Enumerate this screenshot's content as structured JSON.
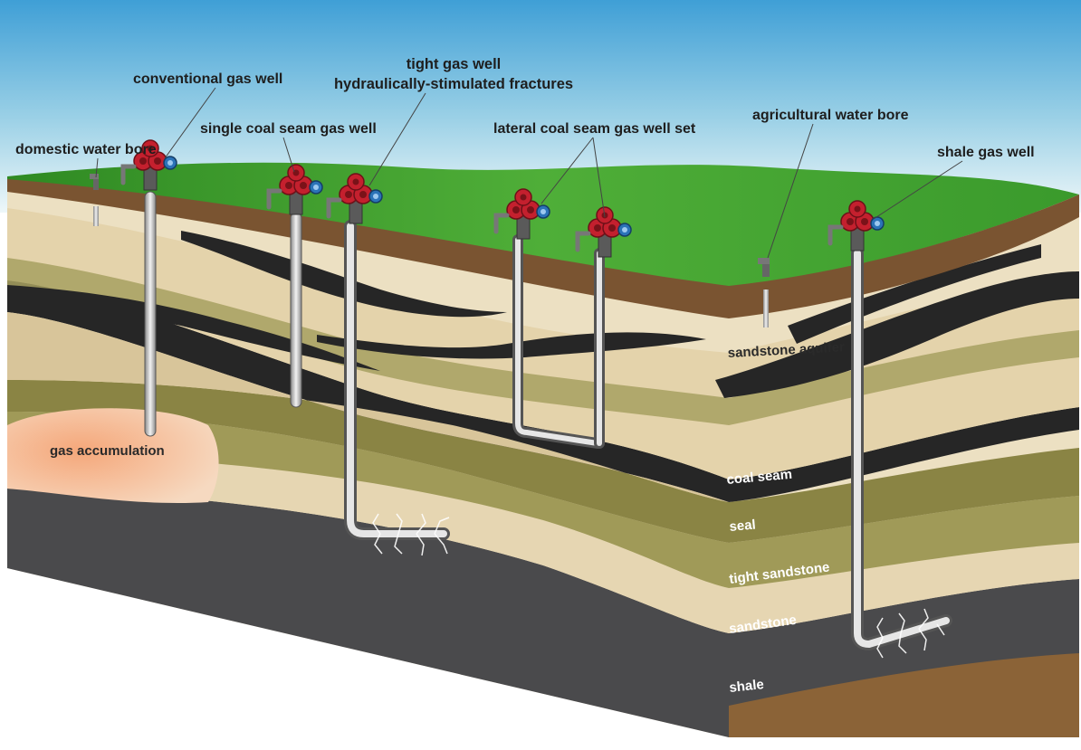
{
  "labels": {
    "domestic_water_bore": "domestic  water bore",
    "conventional_gas_well": "conventional gas well",
    "tight_gas_well": "tight gas well",
    "hydraulic_fractures": "hydraulically-stimulated fractures",
    "single_coal_seam_gas_well": "single coal seam gas well",
    "lateral_coal_seam_gas_well_set": "lateral coal seam gas well set",
    "agricultural_water_bore": "agricultural water bore",
    "shale_gas_well": "shale gas well",
    "sandstone_aquifer": "sandstone aquifer",
    "gas_accumulation": "gas accumulation",
    "coal_seam": "coal seam",
    "seal": "seal",
    "tight_sandstone": "tight sandstone",
    "sandstone": "sandstone",
    "shale": "shale"
  },
  "colors": {
    "sky_top": "#3f9fd6",
    "sky_bottom": "#eef7f9",
    "grass": "#3e9b2e",
    "soil": "#7a5431",
    "coal": "#262626",
    "olive": "#8f8f4a",
    "tan": "#e0cfa8",
    "light_tan": "#ece0c2",
    "shale": "#4a4a4c",
    "gas": "#f3b48a",
    "wellhead_red": "#c4202e",
    "wellhead_blue": "#2b73b8"
  }
}
